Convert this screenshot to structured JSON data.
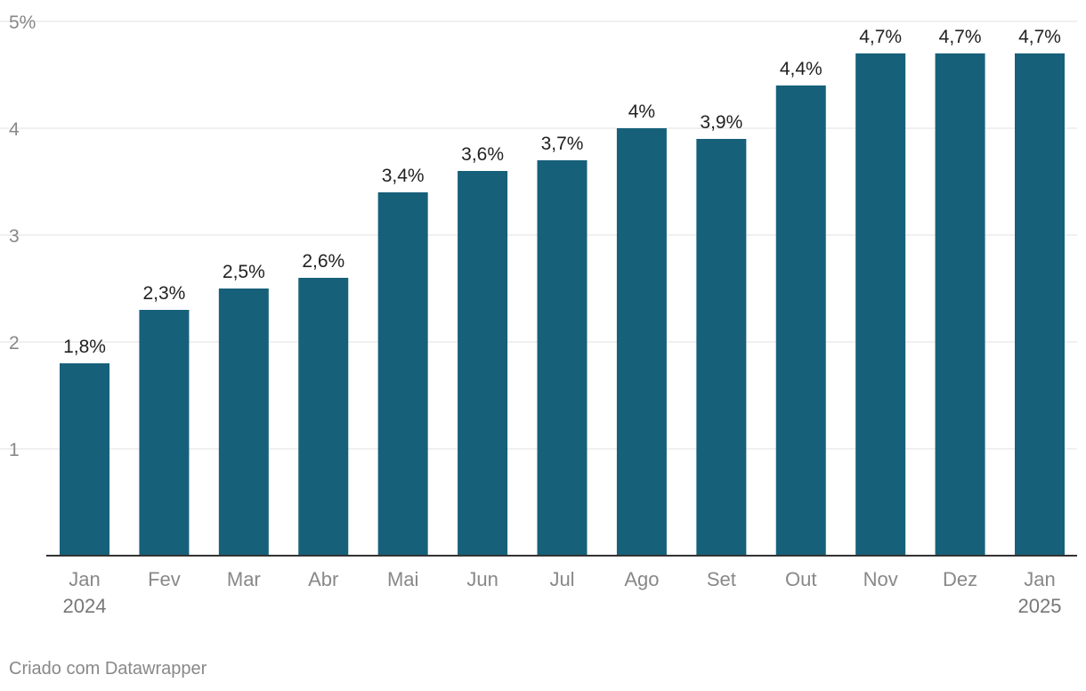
{
  "chart_data": {
    "type": "bar",
    "categories": [
      [
        "Jan",
        "2024"
      ],
      [
        "Fev"
      ],
      [
        "Mar"
      ],
      [
        "Abr"
      ],
      [
        "Mai"
      ],
      [
        "Jun"
      ],
      [
        "Jul"
      ],
      [
        "Ago"
      ],
      [
        "Set"
      ],
      [
        "Out"
      ],
      [
        "Nov"
      ],
      [
        "Dez"
      ],
      [
        "Jan",
        "2025"
      ]
    ],
    "values": [
      1.8,
      2.3,
      2.5,
      2.6,
      3.4,
      3.6,
      3.7,
      4.0,
      3.9,
      4.4,
      4.7,
      4.7,
      4.7
    ],
    "value_labels": [
      "1,8%",
      "2,3%",
      "2,5%",
      "2,6%",
      "3,4%",
      "3,6%",
      "3,7%",
      "4%",
      "3,9%",
      "4,4%",
      "4,7%",
      "4,7%",
      "4,7%"
    ],
    "ylim": [
      0,
      5
    ],
    "yticks": [
      1,
      2,
      3,
      4,
      5
    ],
    "ytick_labels": [
      "1",
      "2",
      "3",
      "4",
      "5%"
    ],
    "grid": true,
    "colors": {
      "bar": "#17607a",
      "grid": "#e0e0e0",
      "axis": "#333333",
      "tick_text": "#888888",
      "value_text": "#222222"
    }
  },
  "footer": {
    "credit": "Criado com Datawrapper"
  }
}
